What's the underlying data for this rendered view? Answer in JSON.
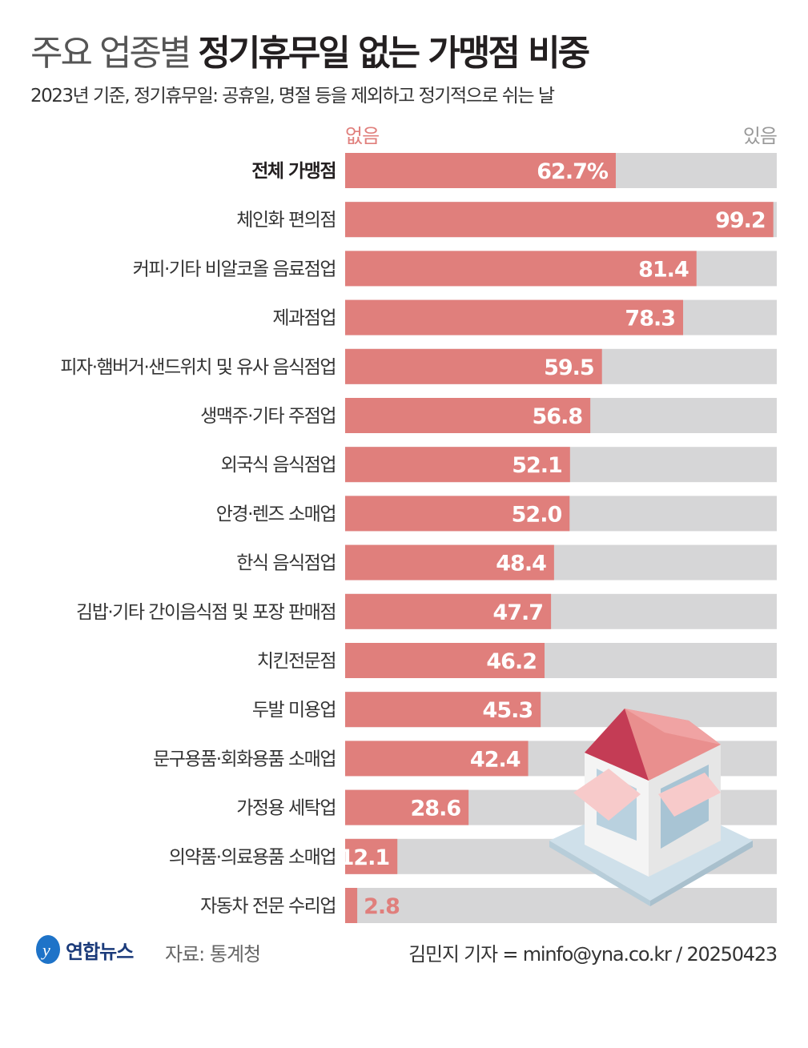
{
  "title": {
    "light": "주요 업종별",
    "bold": "정기휴무일 없는 가맹점 비중"
  },
  "subtitle": "2023년 기준, 정기휴무일: 공휴일, 명절 등을 제외하고 정기적으로 쉬는 날",
  "legend": {
    "none": "없음",
    "has": "있음"
  },
  "colors": {
    "none": "#e07f7c",
    "has": "#d6d6d7",
    "none_label": "#e07f7c",
    "has_label": "#999999"
  },
  "chart_data": {
    "type": "bar",
    "orientation": "horizontal-stacked-100",
    "unit": "%",
    "xlim": [
      0,
      100
    ],
    "categories": [
      "전체 가맹점",
      "체인화 편의점",
      "커피·기타 비알코올 음료점업",
      "제과점업",
      "피자·햄버거·샌드위치 및 유사 음식점업",
      "생맥주·기타 주점업",
      "외국식 음식점업",
      "안경·렌즈 소매업",
      "한식 음식점업",
      "김밥·기타 간이음식점 및 포장 판매점",
      "치킨전문점",
      "두발 미용업",
      "문구용품·회화용품 소매업",
      "가정용 세탁업",
      "의약품·의료용품 소매업",
      "자동차 전문 수리업"
    ],
    "values": [
      62.7,
      99.2,
      81.4,
      78.3,
      59.5,
      56.8,
      52.1,
      52.0,
      48.4,
      47.7,
      46.2,
      45.3,
      42.4,
      28.6,
      12.1,
      2.8
    ],
    "labels": [
      "62.7%",
      "99.2",
      "81.4",
      "78.3",
      "59.5",
      "56.8",
      "52.1",
      "52.0",
      "48.4",
      "47.7",
      "46.2",
      "45.3",
      "42.4",
      "28.6",
      "12.1",
      "2.8"
    ],
    "series": [
      {
        "name": "없음"
      },
      {
        "name": "있음"
      }
    ]
  },
  "footer": {
    "logo": "연합뉴스",
    "source": "자료: 통계청",
    "credit": "김민지 기자 = minfo@yna.co.kr / 20250423"
  }
}
